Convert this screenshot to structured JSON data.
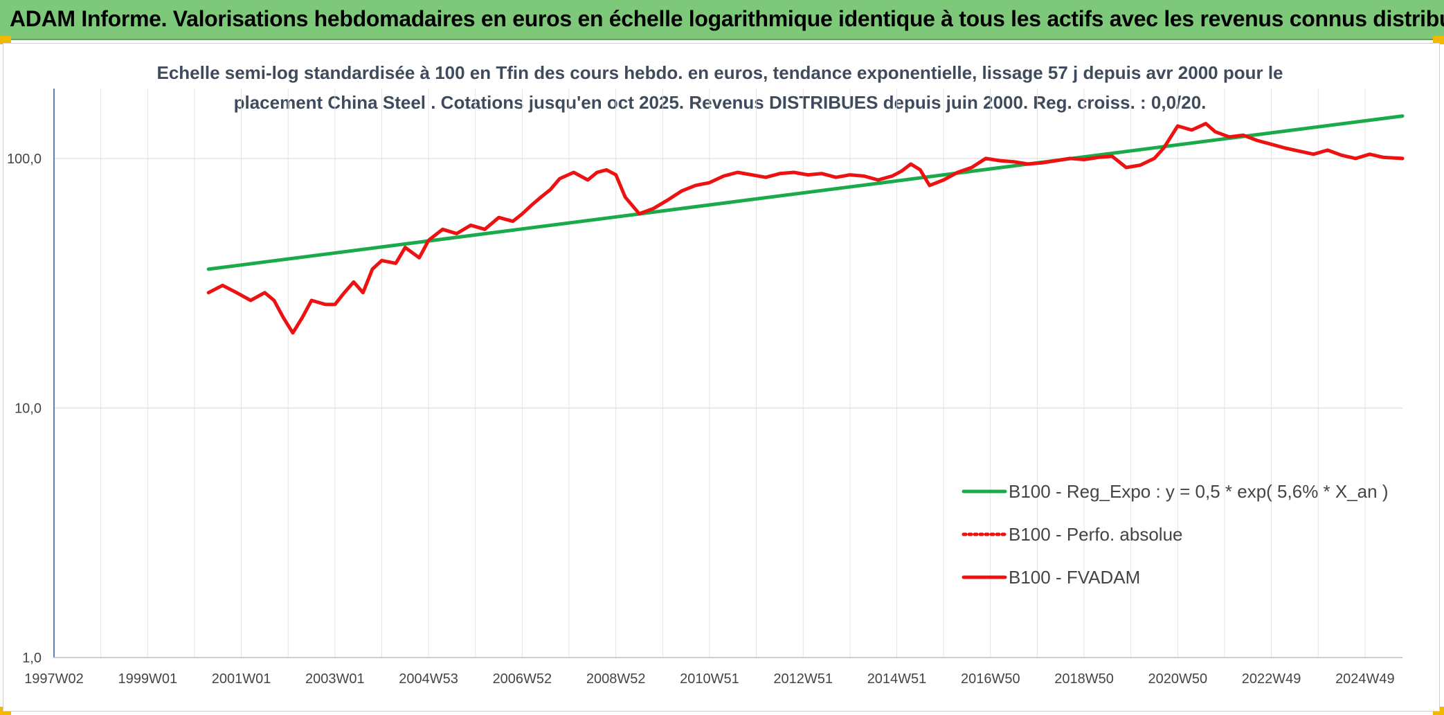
{
  "header": {
    "title": "ADAM Informe. Valorisations hebdomadaires en euros en échelle logarithmique identique à tous les actifs avec les revenus connus distribués"
  },
  "chart_data": {
    "type": "line",
    "subtitle_line1": "Echelle semi-log standardisée à 100 en Tfin des cours hebdo. en euros, tendance exponentielle, lissage 57 j depuis avr 2000 pour le",
    "subtitle_line2": "placement China Steel . Cotations jusqu'en oct 2025. Revenus DISTRIBUES depuis juin 2000. Reg. croiss. : 0,0/20.",
    "y_scale": "log",
    "ylim": [
      1,
      200
    ],
    "y_ticks": [
      1,
      10,
      100
    ],
    "y_tick_labels": [
      "1,0",
      "10,0",
      "100,0"
    ],
    "xlim": [
      1997.0,
      2025.8
    ],
    "x_ticks": [
      1997.0,
      1999.0,
      2001.0,
      2003.0,
      2005.0,
      2007.0,
      2009.0,
      2011.0,
      2013.0,
      2015.0,
      2017.0,
      2019.0,
      2021.0,
      2023.0,
      2025.0
    ],
    "x_tick_labels": [
      "1997W02",
      "1999W01",
      "2001W01",
      "2003W01",
      "2004W53",
      "2006W52",
      "2008W52",
      "2010W51",
      "2012W51",
      "2014W51",
      "2016W50",
      "2018W50",
      "2020W50",
      "2022W49",
      "2024W49"
    ],
    "grid": true,
    "legend_position": "bottom-right",
    "series": [
      {
        "name": "B100 - Reg_Expo : y = 0,5 * exp( 5,6% *  X_an )",
        "color": "#1aaa4a",
        "style": "solid",
        "x": [
          2000.3,
          2025.8
        ],
        "y": [
          36,
          148
        ]
      },
      {
        "name": "B100 - Perfo. absolue",
        "color": "#ee1111",
        "style": "dotted",
        "x": [],
        "y": []
      },
      {
        "name": "B100 - FVADAM",
        "color": "#ee1111",
        "style": "solid",
        "x": [
          2000.3,
          2000.6,
          2000.9,
          2001.2,
          2001.5,
          2001.7,
          2001.9,
          2002.1,
          2002.3,
          2002.5,
          2002.8,
          2003.0,
          2003.2,
          2003.4,
          2003.6,
          2003.8,
          2004.0,
          2004.3,
          2004.5,
          2004.8,
          2005.0,
          2005.3,
          2005.6,
          2005.9,
          2006.2,
          2006.5,
          2006.8,
          2007.0,
          2007.2,
          2007.4,
          2007.6,
          2007.8,
          2008.1,
          2008.4,
          2008.6,
          2008.8,
          2009.0,
          2009.2,
          2009.5,
          2009.8,
          2010.1,
          2010.4,
          2010.7,
          2011.0,
          2011.3,
          2011.6,
          2011.9,
          2012.2,
          2012.5,
          2012.8,
          2013.1,
          2013.4,
          2013.7,
          2014.0,
          2014.3,
          2014.6,
          2014.9,
          2015.1,
          2015.3,
          2015.5,
          2015.7,
          2016.0,
          2016.3,
          2016.6,
          2016.9,
          2017.2,
          2017.5,
          2017.8,
          2018.1,
          2018.4,
          2018.7,
          2019.0,
          2019.3,
          2019.6,
          2019.9,
          2020.2,
          2020.5,
          2020.7,
          2021.0,
          2021.3,
          2021.6,
          2021.8,
          2022.1,
          2022.4,
          2022.7,
          2023.0,
          2023.3,
          2023.6,
          2023.9,
          2024.2,
          2024.5,
          2024.8,
          2025.1,
          2025.4,
          2025.8
        ],
        "y": [
          29,
          31,
          29,
          27,
          29,
          27,
          23,
          20,
          23,
          27,
          26,
          26,
          29,
          32,
          29,
          36,
          39,
          38,
          44,
          40,
          47,
          52,
          50,
          54,
          52,
          58,
          56,
          60,
          65,
          70,
          75,
          83,
          88,
          82,
          88,
          90,
          86,
          70,
          60,
          63,
          68,
          74,
          78,
          80,
          85,
          88,
          86,
          84,
          87,
          88,
          86,
          87,
          84,
          86,
          85,
          82,
          85,
          89,
          95,
          90,
          78,
          82,
          88,
          92,
          100,
          98,
          97,
          95,
          96,
          98,
          100,
          99,
          101,
          102,
          92,
          94,
          100,
          110,
          135,
          130,
          138,
          128,
          122,
          124,
          118,
          114,
          110,
          107,
          104,
          108,
          103,
          100,
          104,
          101,
          100
        ]
      }
    ]
  }
}
